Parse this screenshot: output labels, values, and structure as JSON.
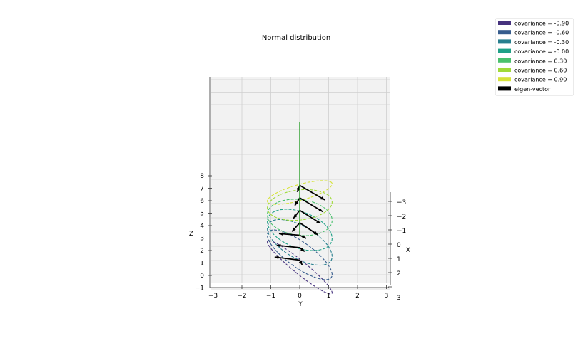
{
  "chart_data": {
    "type": "line",
    "projection": "3d",
    "title": "Normal distribution",
    "xlabel": "X",
    "ylabel": "Y",
    "zlabel": "Z",
    "x_ticks": [
      "−3",
      "−2",
      "−1",
      "0",
      "1",
      "2",
      "3"
    ],
    "y_ticks": [
      "−3",
      "−2",
      "−1",
      "0",
      "1",
      "2",
      "3"
    ],
    "z_ticks": [
      "−1",
      "0",
      "1",
      "2",
      "3",
      "4",
      "5",
      "6",
      "7",
      "8"
    ],
    "xlim": [
      -3,
      3
    ],
    "ylim": [
      -3,
      3
    ],
    "zlim": [
      -1,
      8
    ],
    "grid": true,
    "legend_position": "top-right",
    "line_style": "dashed",
    "series": [
      {
        "name": "covariance = -0.90",
        "covariance": -0.9,
        "z_level": 1,
        "color": "#46327e"
      },
      {
        "name": "covariance = -0.60",
        "covariance": -0.6,
        "z_level": 2,
        "color": "#365c8d"
      },
      {
        "name": "covariance = -0.30",
        "covariance": -0.3,
        "z_level": 3,
        "color": "#277f8e"
      },
      {
        "name": "covariance = -0.00",
        "covariance": 0.0,
        "z_level": 4,
        "color": "#1fa187"
      },
      {
        "name": "covariance = 0.30",
        "covariance": 0.3,
        "z_level": 5,
        "color": "#4ac16d"
      },
      {
        "name": "covariance = 0.60",
        "covariance": 0.6,
        "z_level": 6,
        "color": "#a0da39"
      },
      {
        "name": "covariance = 0.90",
        "covariance": 0.9,
        "z_level": 7,
        "color": "#d6e33a"
      }
    ],
    "eigen_vector_label": "eigen-vector",
    "eigen_vector_color": "#000000",
    "center_line_color": "#2ca02c"
  }
}
